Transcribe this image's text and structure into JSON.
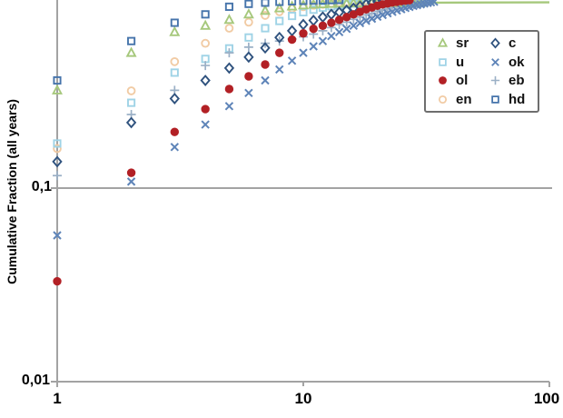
{
  "labels": {
    "y_tick_01": "0,1",
    "y_tick_001": "0,01",
    "x_tick_1": "1",
    "x_tick_10": "10",
    "x_tick_100": "100"
  },
  "colors": {
    "axis": "#a3a3a3",
    "gridline": "#a3a3a3",
    "text": "#000000",
    "legend_border": "#6e6e6e",
    "background": "#ffffff"
  },
  "chart_data": {
    "type": "scatter",
    "title": "",
    "xlabel": "",
    "ylabel": "Cumulative Fraction (all years)",
    "x_scale": "log",
    "y_scale": "log",
    "x_ticks": [
      "1",
      "10",
      "100"
    ],
    "y_ticks": [
      "0,01",
      "0,1"
    ],
    "x_range": [
      1,
      100
    ],
    "y_range_visible": [
      0.01,
      0.94
    ],
    "gridline_y": 0.1,
    "grid": "horizontal-0.1-only",
    "legend_position": "top-right",
    "legend_rows": [
      [
        "sr",
        "c"
      ],
      [
        "u",
        "ok"
      ],
      [
        "ol",
        "eb"
      ],
      [
        "en",
        "hd"
      ]
    ],
    "draw_order": [
      "en",
      "u",
      "eb",
      "sr",
      "hd",
      "c",
      "ok",
      "ol"
    ],
    "series": [
      {
        "name": "sr",
        "marker": "triangle",
        "color": "#a6c87c",
        "filled": false,
        "points": [
          [
            1,
            0.32
          ],
          [
            2,
            0.5
          ],
          [
            3,
            0.64
          ],
          [
            4,
            0.69
          ],
          [
            5,
            0.74
          ],
          [
            6,
            0.79
          ],
          [
            7,
            0.825
          ],
          [
            8,
            0.85
          ],
          [
            9,
            0.868
          ],
          [
            10,
            0.88
          ],
          [
            11,
            0.887
          ],
          [
            12,
            0.892
          ],
          [
            13,
            0.896
          ],
          [
            14,
            0.899
          ],
          [
            15,
            0.901
          ],
          [
            16,
            0.902
          ],
          [
            17,
            0.903
          ],
          [
            18,
            0.904
          ],
          [
            19,
            0.905
          ],
          [
            20,
            0.905
          ],
          [
            22,
            0.906
          ],
          [
            24,
            0.906
          ],
          [
            26,
            0.907
          ],
          [
            28,
            0.907
          ],
          [
            30,
            0.907
          ]
        ],
        "tail_line": [
          [
            28,
            0.907
          ],
          [
            100,
            0.912
          ]
        ]
      },
      {
        "name": "u",
        "marker": "square",
        "color": "#9fd3e6",
        "filled": false,
        "points": [
          [
            1,
            0.17
          ],
          [
            2,
            0.276
          ],
          [
            3,
            0.395
          ],
          [
            4,
            0.465
          ],
          [
            5,
            0.527
          ],
          [
            6,
            0.6
          ],
          [
            7,
            0.67
          ],
          [
            8,
            0.73
          ],
          [
            9,
            0.775
          ],
          [
            10,
            0.81
          ],
          [
            11,
            0.835
          ],
          [
            12,
            0.855
          ],
          [
            13,
            0.87
          ],
          [
            14,
            0.881
          ],
          [
            15,
            0.89
          ],
          [
            16,
            0.898
          ],
          [
            17,
            0.905
          ],
          [
            18,
            0.912
          ],
          [
            19,
            0.918
          ],
          [
            20,
            0.923
          ],
          [
            21,
            0.927
          ],
          [
            22,
            0.931
          ],
          [
            23,
            0.934
          ],
          [
            24,
            0.937
          ]
        ]
      },
      {
        "name": "ol",
        "marker": "circle",
        "color": "#b22025",
        "filled": true,
        "points": [
          [
            1,
            0.033
          ],
          [
            2,
            0.12
          ],
          [
            3,
            0.195
          ],
          [
            4,
            0.256
          ],
          [
            5,
            0.325
          ],
          [
            6,
            0.378
          ],
          [
            7,
            0.435
          ],
          [
            8,
            0.5
          ],
          [
            9,
            0.585
          ],
          [
            10,
            0.63
          ],
          [
            11,
            0.665
          ],
          [
            12,
            0.69
          ],
          [
            13,
            0.715
          ],
          [
            14,
            0.74
          ],
          [
            15,
            0.765
          ],
          [
            16,
            0.79
          ],
          [
            17,
            0.815
          ],
          [
            18,
            0.838
          ],
          [
            19,
            0.858
          ],
          [
            20,
            0.875
          ],
          [
            21,
            0.89
          ],
          [
            22,
            0.9
          ],
          [
            23,
            0.91
          ],
          [
            24,
            0.918
          ],
          [
            25,
            0.925
          ],
          [
            26,
            0.93
          ],
          [
            27,
            0.935
          ]
        ]
      },
      {
        "name": "en",
        "marker": "circle",
        "color": "#f1cba4",
        "filled": false,
        "points": [
          [
            1,
            0.16
          ],
          [
            2,
            0.318
          ],
          [
            3,
            0.45
          ],
          [
            4,
            0.56
          ],
          [
            5,
            0.67
          ],
          [
            6,
            0.72
          ],
          [
            7,
            0.78
          ],
          [
            8,
            0.815
          ],
          [
            9,
            0.845
          ],
          [
            10,
            0.865
          ],
          [
            11,
            0.88
          ],
          [
            12,
            0.89
          ],
          [
            13,
            0.9
          ],
          [
            14,
            0.908
          ],
          [
            15,
            0.915
          ],
          [
            16,
            0.92
          ],
          [
            17,
            0.925
          ],
          [
            18,
            0.929
          ],
          [
            19,
            0.932
          ],
          [
            20,
            0.935
          ]
        ]
      },
      {
        "name": "c",
        "marker": "diamond",
        "color": "#2f527e",
        "filled": false,
        "points": [
          [
            1,
            0.137
          ],
          [
            2,
            0.218
          ],
          [
            3,
            0.29
          ],
          [
            4,
            0.36
          ],
          [
            5,
            0.417
          ],
          [
            6,
            0.475
          ],
          [
            7,
            0.53
          ],
          [
            8,
            0.6
          ],
          [
            9,
            0.65
          ],
          [
            10,
            0.7
          ],
          [
            11,
            0.735
          ],
          [
            12,
            0.765
          ],
          [
            13,
            0.79
          ],
          [
            14,
            0.81
          ],
          [
            15,
            0.83
          ],
          [
            16,
            0.85
          ],
          [
            17,
            0.87
          ],
          [
            18,
            0.89
          ],
          [
            19,
            0.905
          ],
          [
            20,
            0.918
          ],
          [
            21,
            0.93
          ]
        ]
      },
      {
        "name": "ok",
        "marker": "x",
        "color": "#5e84b8",
        "filled": false,
        "points": [
          [
            1,
            0.057
          ],
          [
            2,
            0.108
          ],
          [
            3,
            0.163
          ],
          [
            4,
            0.213
          ],
          [
            5,
            0.265
          ],
          [
            6,
            0.31
          ],
          [
            7,
            0.36
          ],
          [
            8,
            0.41
          ],
          [
            9,
            0.455
          ],
          [
            10,
            0.5
          ],
          [
            11,
            0.54
          ],
          [
            12,
            0.575
          ],
          [
            13,
            0.61
          ],
          [
            14,
            0.64
          ],
          [
            15,
            0.665
          ],
          [
            16,
            0.69
          ],
          [
            17,
            0.712
          ],
          [
            18,
            0.732
          ],
          [
            19,
            0.75
          ],
          [
            20,
            0.768
          ],
          [
            21,
            0.784
          ],
          [
            22,
            0.8
          ],
          [
            23,
            0.814
          ],
          [
            24,
            0.827
          ],
          [
            25,
            0.84
          ],
          [
            26,
            0.852
          ],
          [
            27,
            0.863
          ],
          [
            28,
            0.873
          ],
          [
            29,
            0.882
          ],
          [
            30,
            0.89
          ],
          [
            31,
            0.898
          ],
          [
            32,
            0.905
          ],
          [
            33,
            0.912
          ],
          [
            34,
            0.918
          ]
        ]
      },
      {
        "name": "eb",
        "marker": "plus",
        "color": "#9bb0c6",
        "filled": false,
        "points": [
          [
            1,
            0.116
          ],
          [
            2,
            0.24
          ],
          [
            3,
            0.32
          ],
          [
            4,
            0.43
          ],
          [
            5,
            0.5
          ],
          [
            6,
            0.535
          ],
          [
            7,
            0.56
          ],
          [
            8,
            0.575
          ],
          [
            9,
            0.59
          ],
          [
            10,
            0.605
          ],
          [
            11,
            0.625
          ],
          [
            12,
            0.65
          ],
          [
            13,
            0.675
          ],
          [
            14,
            0.7
          ],
          [
            15,
            0.72
          ],
          [
            16,
            0.745
          ],
          [
            17,
            0.765
          ],
          [
            18,
            0.785
          ],
          [
            19,
            0.8
          ],
          [
            20,
            0.82
          ],
          [
            21,
            0.835
          ],
          [
            22,
            0.85
          ],
          [
            23,
            0.865
          ],
          [
            24,
            0.878
          ],
          [
            25,
            0.89
          ],
          [
            26,
            0.9
          ],
          [
            27,
            0.91
          ],
          [
            28,
            0.92
          ],
          [
            29,
            0.928
          ],
          [
            30,
            0.935
          ]
        ]
      },
      {
        "name": "hd",
        "marker": "square",
        "color": "#4674ab",
        "filled": false,
        "points": [
          [
            1,
            0.36
          ],
          [
            2,
            0.575
          ],
          [
            3,
            0.715
          ],
          [
            4,
            0.79
          ],
          [
            5,
            0.865
          ],
          [
            6,
            0.895
          ],
          [
            7,
            0.908
          ],
          [
            8,
            0.917
          ],
          [
            9,
            0.923
          ],
          [
            10,
            0.928
          ],
          [
            11,
            0.931
          ],
          [
            12,
            0.934
          ],
          [
            13,
            0.936
          ],
          [
            14,
            0.938
          ]
        ]
      }
    ]
  }
}
